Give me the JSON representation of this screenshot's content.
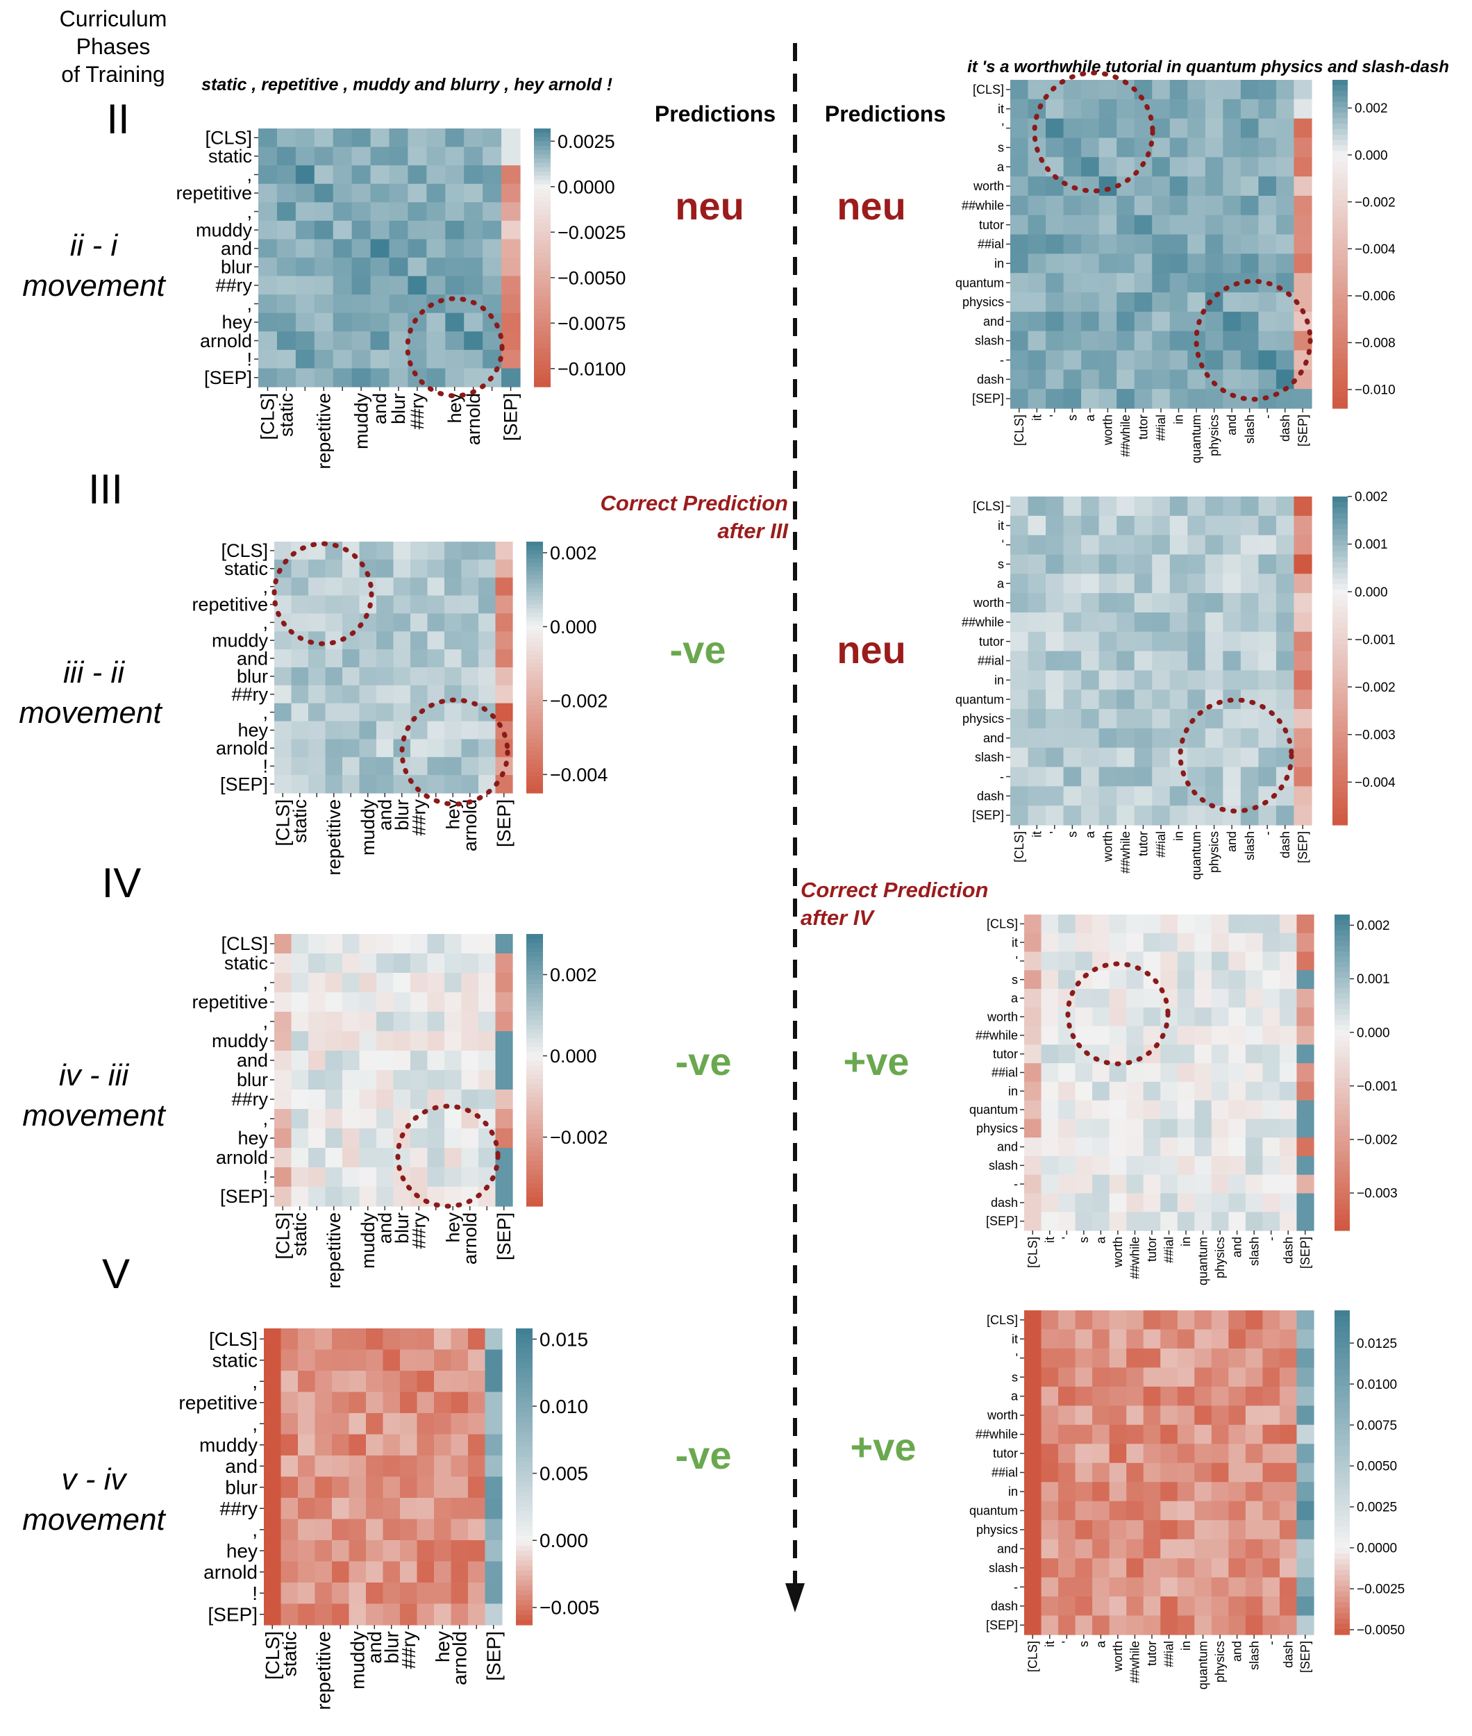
{
  "header": {
    "left_title_lines": [
      "Curriculum",
      "Phases",
      "of Training"
    ],
    "left_sentence": "static , repetitive , muddy and blurry , hey arnold !",
    "right_sentence": "it 's a worthwhile tutorial in quantum physics and slash-dash",
    "predictions_label": "Predictions"
  },
  "phases": [
    {
      "numeral": "II",
      "movement_label": [
        "ii - i",
        "movement"
      ],
      "pred_left": "neu",
      "pred_right": "neu"
    },
    {
      "numeral": "III",
      "movement_label": [
        "iii - ii",
        "movement"
      ],
      "pred_left": "-ve",
      "pred_right": "neu"
    },
    {
      "numeral": "IV",
      "movement_label": [
        "iv - iii",
        "movement"
      ],
      "pred_left": "-ve",
      "pred_right": "+ve"
    },
    {
      "numeral": "V",
      "movement_label": [
        "v - iv",
        "movement"
      ],
      "pred_left": "-ve",
      "pred_right": "+ve"
    }
  ],
  "annotations": {
    "after_iii": [
      "Correct Prediction",
      "after III"
    ],
    "after_iv": [
      "Correct Prediction",
      "after IV"
    ]
  },
  "colors": {
    "neu": "#9b1c1c",
    "positive_pred": "#6aa84f",
    "annotation": "#9b1c1c",
    "circle": "#8b1a1a",
    "cmap_high": "#3f7f93",
    "cmap_mid": "#f2f2f2",
    "cmap_low": "#d0573f"
  },
  "chart_data": [
    {
      "type": "heatmap",
      "id": "L1",
      "title": "ii - i movement (left sentence)",
      "tokens": [
        "[CLS]",
        "static",
        ",",
        "repetitive",
        ",",
        "muddy",
        "and",
        "blur",
        "##ry",
        ",",
        "hey",
        "arnold",
        "!",
        "[SEP]"
      ],
      "y_tick_labels": [
        "[CLS]",
        "static",
        ",",
        "repetitive",
        ",",
        "muddy",
        "and",
        "blur",
        "##ry",
        ",",
        "hey",
        "arnold",
        "!",
        "[SEP]"
      ],
      "x_tick_labels": [
        "[CLS]",
        "static",
        "",
        "repetitive",
        "",
        "muddy",
        "and",
        "blur",
        "##ry",
        "",
        "hey",
        "arnold",
        "",
        "[SEP]"
      ],
      "colorbar_ticks": [
        0.0025,
        0.0,
        -0.0025,
        -0.005,
        -0.0075,
        -0.01
      ],
      "colorbar_tick_labels": [
        "0.0025",
        "0.0000",
        "−0.0025",
        "−0.0050",
        "−0.0075",
        "−0.0100"
      ],
      "vmin": -0.011,
      "vmax": 0.0032,
      "pattern": 0,
      "seed": 11
    },
    {
      "type": "heatmap",
      "id": "R1",
      "title": "ii - i movement (right sentence)",
      "tokens": [
        "[CLS]",
        "it",
        "'",
        "s",
        "a",
        "worth",
        "##while",
        "tutor",
        "##ial",
        "in",
        "quantum",
        "physics",
        "and",
        "slash",
        "-",
        "dash",
        "[SEP]"
      ],
      "y_tick_labels": [
        "[CLS]",
        "it",
        "'",
        "s",
        "a",
        "worth",
        "##while",
        "tutor",
        "##ial",
        "in",
        "quantum",
        "physics",
        "and",
        "slash",
        "-",
        "dash",
        "[SEP]"
      ],
      "x_tick_labels": [
        "[CLS]",
        "it",
        "'",
        "s",
        "a",
        "worth",
        "##while",
        "tutor",
        "##ial",
        "in",
        "quantum",
        "physics",
        "and",
        "slash",
        "-",
        "dash",
        "[SEP]"
      ],
      "colorbar_ticks": [
        0.002,
        0.0,
        -0.002,
        -0.004,
        -0.006,
        -0.008,
        -0.01
      ],
      "colorbar_tick_labels": [
        "0.002",
        "0.000",
        "−0.002",
        "−0.004",
        "−0.006",
        "−0.008",
        "−0.010"
      ],
      "vmin": -0.0108,
      "vmax": 0.0032,
      "pattern": 0,
      "seed": 21
    },
    {
      "type": "heatmap",
      "id": "L2",
      "title": "iii - ii movement (left sentence)",
      "tokens": [
        "[CLS]",
        "static",
        ",",
        "repetitive",
        ",",
        "muddy",
        "and",
        "blur",
        "##ry",
        ",",
        "hey",
        "arnold",
        "!",
        "[SEP]"
      ],
      "y_tick_labels": [
        "[CLS]",
        "static",
        ",",
        "repetitive",
        ",",
        "muddy",
        "and",
        "blur",
        "##ry",
        ",",
        "hey",
        "arnold",
        "!",
        "[SEP]"
      ],
      "x_tick_labels": [
        "[CLS]",
        "static",
        "",
        "repetitive",
        "",
        "muddy",
        "and",
        "blur",
        "##ry",
        "",
        "hey",
        "arnold",
        "",
        "[SEP]"
      ],
      "colorbar_ticks": [
        0.002,
        0.0,
        -0.002,
        -0.004
      ],
      "colorbar_tick_labels": [
        "0.002",
        "0.000",
        "−0.002",
        "−0.004"
      ],
      "vmin": -0.0045,
      "vmax": 0.0023,
      "pattern": 1,
      "seed": 31
    },
    {
      "type": "heatmap",
      "id": "R2",
      "title": "iii - ii movement (right sentence)",
      "tokens": [
        "[CLS]",
        "it",
        "'",
        "s",
        "a",
        "worth",
        "##while",
        "tutor",
        "##ial",
        "in",
        "quantum",
        "physics",
        "and",
        "slash",
        "-",
        "dash",
        "[SEP]"
      ],
      "y_tick_labels": [
        "[CLS]",
        "it",
        "'",
        "s",
        "a",
        "worth",
        "##while",
        "tutor",
        "##ial",
        "in",
        "quantum",
        "physics",
        "and",
        "slash",
        "-",
        "dash",
        "[SEP]"
      ],
      "x_tick_labels": [
        "[CLS]",
        "it",
        "'",
        "s",
        "a",
        "worth",
        "##while",
        "tutor",
        "##ial",
        "in",
        "quantum",
        "physics",
        "and",
        "slash",
        "-",
        "dash",
        "[SEP]"
      ],
      "colorbar_ticks": [
        0.002,
        0.001,
        0.0,
        -0.001,
        -0.002,
        -0.003,
        -0.004
      ],
      "colorbar_tick_labels": [
        "0.002",
        "0.001",
        "0.000",
        "−0.001",
        "−0.002",
        "−0.003",
        "−0.004"
      ],
      "vmin": -0.0049,
      "vmax": 0.002,
      "pattern": 1,
      "seed": 41
    },
    {
      "type": "heatmap",
      "id": "L3",
      "title": "iv - iii movement (left sentence)",
      "tokens": [
        "[CLS]",
        "static",
        ",",
        "repetitive",
        ",",
        "muddy",
        "and",
        "blur",
        "##ry",
        ",",
        "hey",
        "arnold",
        "!",
        "[SEP]"
      ],
      "y_tick_labels": [
        "[CLS]",
        "static",
        ",",
        "repetitive",
        ",",
        "muddy",
        "and",
        "blur",
        "##ry",
        ",",
        "hey",
        "arnold",
        "!",
        "[SEP]"
      ],
      "x_tick_labels": [
        "[CLS]",
        "static",
        "",
        "repetitive",
        "",
        "muddy",
        "and",
        "blur",
        "##ry",
        "",
        "hey",
        "arnold",
        "",
        "[SEP]"
      ],
      "colorbar_ticks": [
        0.002,
        0.0,
        -0.002
      ],
      "colorbar_tick_labels": [
        "0.002",
        "0.000",
        "−0.002"
      ],
      "vmin": -0.0037,
      "vmax": 0.003,
      "pattern": 2,
      "seed": 51
    },
    {
      "type": "heatmap",
      "id": "R3",
      "title": "iv - iii movement (right sentence)",
      "tokens": [
        "[CLS]",
        "it",
        "'",
        "s",
        "a",
        "worth",
        "##while",
        "tutor",
        "##ial",
        "in",
        "quantum",
        "physics",
        "and",
        "slash",
        "-",
        "dash",
        "[SEP]"
      ],
      "y_tick_labels": [
        "[CLS]",
        "it",
        "'",
        "s",
        "a",
        "worth",
        "##while",
        "tutor",
        "##ial",
        "in",
        "quantum",
        "physics",
        "and",
        "slash",
        "-",
        "dash",
        "[SEP]"
      ],
      "x_tick_labels": [
        "[CLS]",
        "it",
        "'",
        "s",
        "a",
        "worth",
        "##while",
        "tutor",
        "##ial",
        "in",
        "quantum",
        "physics",
        "and",
        "slash",
        "-",
        "dash",
        "[SEP]"
      ],
      "colorbar_ticks": [
        0.002,
        0.001,
        0.0,
        -0.001,
        -0.002,
        -0.003
      ],
      "colorbar_tick_labels": [
        "0.002",
        "0.001",
        "0.000",
        "−0.001",
        "−0.002",
        "−0.003"
      ],
      "vmin": -0.0037,
      "vmax": 0.0022,
      "pattern": 2,
      "seed": 61
    },
    {
      "type": "heatmap",
      "id": "L4",
      "title": "v - iv movement (left sentence)",
      "tokens": [
        "[CLS]",
        "static",
        ",",
        "repetitive",
        ",",
        "muddy",
        "and",
        "blur",
        "##ry",
        ",",
        "hey",
        "arnold",
        "!",
        "[SEP]"
      ],
      "y_tick_labels": [
        "[CLS]",
        "static",
        ",",
        "repetitive",
        ",",
        "muddy",
        "and",
        "blur",
        "##ry",
        ",",
        "hey",
        "arnold",
        "!",
        "[SEP]"
      ],
      "x_tick_labels": [
        "[CLS]",
        "static",
        "",
        "repetitive",
        "",
        "muddy",
        "and",
        "blur",
        "##ry",
        "",
        "hey",
        "arnold",
        "",
        "[SEP]"
      ],
      "colorbar_ticks": [
        0.015,
        0.01,
        0.005,
        0.0,
        -0.005
      ],
      "colorbar_tick_labels": [
        "0.015",
        "0.010",
        "0.005",
        "0.000",
        "−0.005"
      ],
      "vmin": -0.0063,
      "vmax": 0.0158,
      "pattern": 3,
      "seed": 71
    },
    {
      "type": "heatmap",
      "id": "R4",
      "title": "v - iv movement (right sentence)",
      "tokens": [
        "[CLS]",
        "it",
        "'",
        "s",
        "a",
        "worth",
        "##while",
        "tutor",
        "##ial",
        "in",
        "quantum",
        "physics",
        "and",
        "slash",
        "-",
        "dash",
        "[SEP]"
      ],
      "y_tick_labels": [
        "[CLS]",
        "it",
        "'",
        "s",
        "a",
        "worth",
        "##while",
        "tutor",
        "##ial",
        "in",
        "quantum",
        "physics",
        "and",
        "slash",
        "-",
        "dash",
        "[SEP]"
      ],
      "x_tick_labels": [
        "[CLS]",
        "it",
        "'",
        "s",
        "a",
        "worth",
        "##while",
        "tutor",
        "##ial",
        "in",
        "quantum",
        "physics",
        "and",
        "slash",
        "-",
        "dash",
        "[SEP]"
      ],
      "colorbar_ticks": [
        0.0125,
        0.01,
        0.0075,
        0.005,
        0.0025,
        0.0,
        -0.0025,
        -0.005
      ],
      "colorbar_tick_labels": [
        "0.0125",
        "0.0100",
        "0.0075",
        "0.0050",
        "0.0025",
        "0.0000",
        "−0.0025",
        "−0.0050"
      ],
      "vmin": -0.0053,
      "vmax": 0.0145,
      "pattern": 3,
      "seed": 81
    }
  ]
}
